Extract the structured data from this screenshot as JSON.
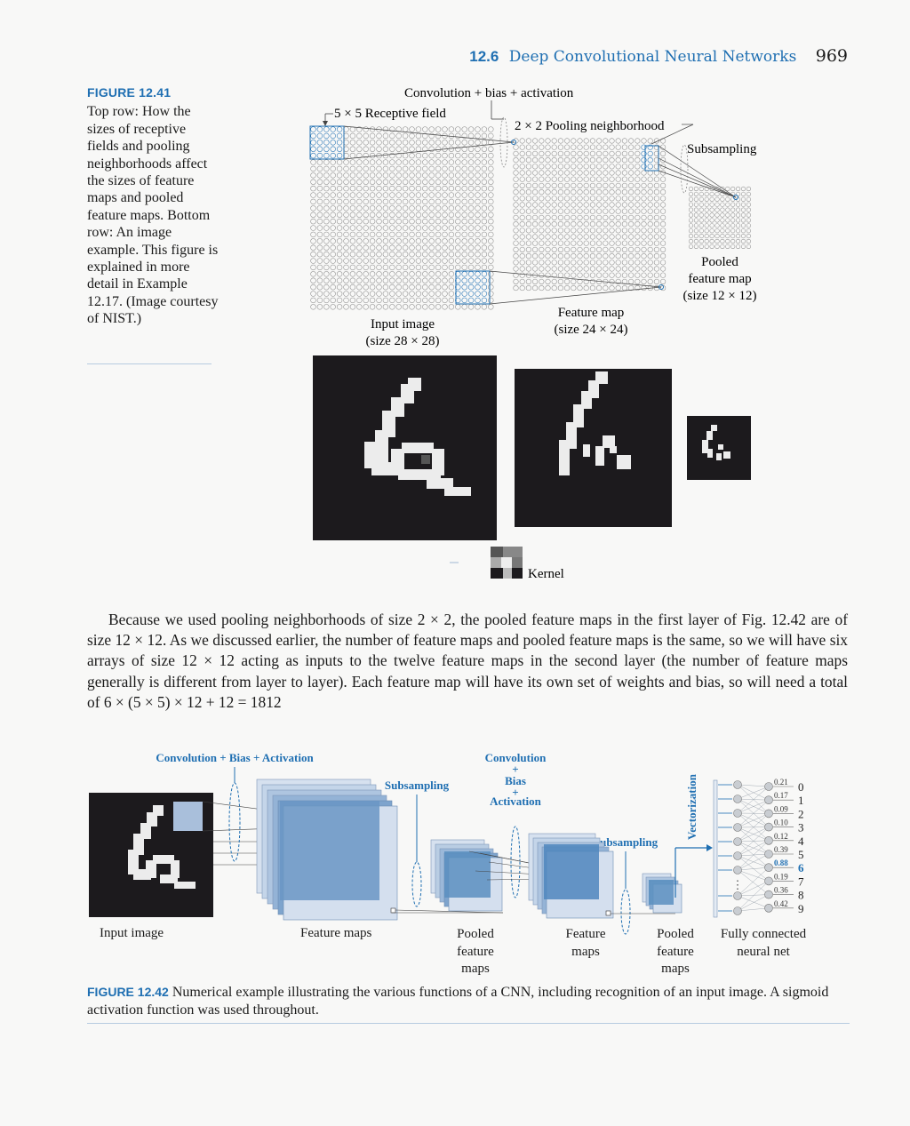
{
  "header": {
    "section_number": "12.6",
    "section_title": "Deep Convolutional Neural Networks",
    "page_number": "969"
  },
  "figure_12_41": {
    "label": "FIGURE 12.41",
    "caption": "Top row: How the sizes of receptive fields and pooling neighborhoods affect the sizes of feature maps and pooled feature maps. Bottom row: An image example. This figure is explained in more detail in Example 12.17. (Image courtesy of NIST.)",
    "labels": {
      "conv_bias_activation": "Convolution + bias + activation",
      "receptive_field": "5 × 5 Receptive field",
      "pooling_neighborhood": "2 × 2 Pooling neighborhood",
      "subsampling": "Subsampling",
      "pooled_line1": "Pooled",
      "pooled_line2": "feature map",
      "pooled_line3": "(size 12 × 12)",
      "feature_map_line1": "Feature map",
      "feature_map_line2": "(size 24 × 24)",
      "input_line1": "Input image",
      "input_line2": "(size  28 × 28)",
      "kernel": "Kernel"
    }
  },
  "paragraph": "Because we used pooling neighborhoods of size 2 × 2, the pooled feature maps in the first layer of Fig. 12.42 are of size 12 × 12. As we discussed earlier, the number of feature maps and pooled feature maps is the same, so we will have six arrays of size 12 × 12 acting as inputs to the twelve feature maps in the second layer (the number of feature maps generally is different from layer to layer). Each feature map will have its own set of weights and bias, so will need a total of 6 × (5 × 5) × 12 + 12 = 1812",
  "figure_12_42": {
    "label": "FIGURE 12.42",
    "caption": "Numerical example illustrating the various functions of a CNN, including recognition of an input image. A sigmoid activation function was used throughout.",
    "labels": {
      "conv1": "Convolution + Bias + Activation",
      "conv2_line1": "Convolution",
      "conv2_line2": "+",
      "conv2_line3": "Bias",
      "conv2_line4": "+",
      "conv2_line5": "Activation",
      "subsampling1": "Subsampling",
      "subsampling2": "Subsampling",
      "vectorization": "Vectorization",
      "input_image": "Input image",
      "feature_maps": "Feature maps",
      "pooled1_line1": "Pooled",
      "pooled1_line2": "feature",
      "pooled1_line3": "maps",
      "feature2_line1": "Feature",
      "feature2_line2": "maps",
      "pooled2_line1": "Pooled",
      "pooled2_line2": "feature",
      "pooled2_line3": "maps",
      "fc_line1": "Fully connected",
      "fc_line2": "neural net"
    },
    "outputs": [
      {
        "value": "0.21",
        "digit": "0"
      },
      {
        "value": "0.17",
        "digit": "1"
      },
      {
        "value": "0.09",
        "digit": "2"
      },
      {
        "value": "0.10",
        "digit": "3"
      },
      {
        "value": "0.12",
        "digit": "4"
      },
      {
        "value": "0.39",
        "digit": "5"
      },
      {
        "value": "0.88",
        "digit": "6"
      },
      {
        "value": "0.19",
        "digit": "7"
      },
      {
        "value": "0.36",
        "digit": "8"
      },
      {
        "value": "0.42",
        "digit": "9"
      }
    ],
    "highlight_digit": "6"
  },
  "colors": {
    "accent": "#1f6fb2",
    "map_fill": "#5b8fc0",
    "map_light": "#b9cde3",
    "dark_image": "#1c1a1d"
  }
}
